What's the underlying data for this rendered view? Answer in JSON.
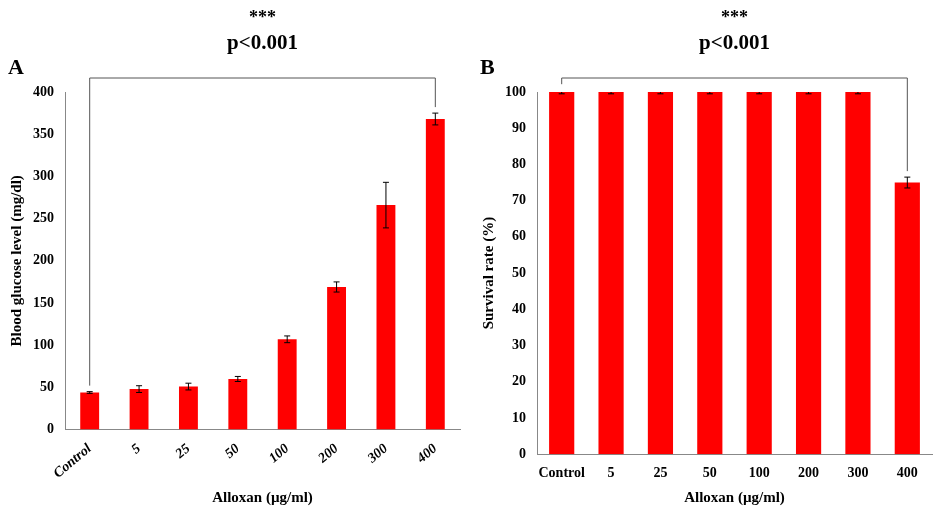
{
  "chart_data": [
    {
      "type": "bar",
      "title": "A",
      "categories": [
        "Control",
        "5",
        "25",
        "50",
        "100",
        "200",
        "300",
        "400"
      ],
      "values": [
        44,
        48,
        51,
        60,
        107,
        169,
        266,
        368
      ],
      "errors": [
        1,
        4,
        4,
        3,
        4,
        6,
        27,
        7
      ],
      "color": "#ff0000",
      "x_label": "Alloxan (µg/ml)",
      "y_label": "Blood glucose level (mg/dl)",
      "ylim": [
        0,
        400
      ],
      "yticks": [
        0,
        50,
        100,
        150,
        200,
        250,
        300,
        350,
        400
      ],
      "grid": false,
      "annotation": {
        "stars": "***",
        "text": "p<0.001",
        "from": "Control",
        "to": "400"
      }
    },
    {
      "type": "bar",
      "title": "B",
      "categories": [
        "Control",
        "5",
        "25",
        "50",
        "100",
        "200",
        "300",
        "400"
      ],
      "values": [
        100,
        100,
        100,
        100,
        100,
        100,
        100,
        75
      ],
      "errors": [
        0.5,
        0.5,
        0.5,
        0.5,
        0.5,
        0.5,
        0.5,
        1.5
      ],
      "color": "#ff0000",
      "x_label": "Alloxan (µg/ml)",
      "y_label": "Survival rate (%)",
      "ylim": [
        0,
        100
      ],
      "yticks": [
        0,
        10,
        20,
        30,
        40,
        50,
        60,
        70,
        80,
        90,
        100
      ],
      "grid": false,
      "annotation": {
        "stars": "***",
        "text": "p<0.001",
        "from": "Control",
        "to": "400"
      }
    }
  ]
}
